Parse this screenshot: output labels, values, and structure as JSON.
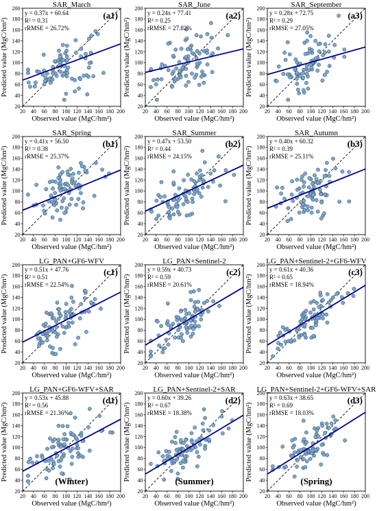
{
  "figure": {
    "x_ticks": [
      20,
      40,
      60,
      80,
      100,
      120,
      140,
      160,
      180,
      200
    ],
    "y_ticks": [
      20,
      40,
      60,
      80,
      100,
      120,
      140,
      160,
      180,
      200
    ],
    "axis_range": [
      20,
      200
    ],
    "xlabel": "Observed value (MgC/hm²)",
    "ylabel": "Predicted value (MgC/hm²)",
    "colors": {
      "point_fill": "#7fa8cb",
      "point_stroke": "#1e3c5e",
      "fit_line": "#00008b",
      "identity_line": "#000000"
    }
  },
  "chart_data": [
    {
      "type": "scatter",
      "panel": "a1",
      "title": "SAR_March",
      "equation": "y = 0.37x + 60.64",
      "r2": "R² = 0.31",
      "rrmse": "rRMSE = 26.72%",
      "slope": 0.37,
      "intercept": 60.64,
      "xlim": [
        20,
        200
      ],
      "ylim": [
        20,
        200
      ],
      "tag": ""
    },
    {
      "type": "scatter",
      "panel": "a2",
      "title": "SAR_June",
      "equation": "y = 0.24x + 77.41",
      "r2": "R² = 0.25",
      "rrmse": "rRMSE = 27.82%",
      "slope": 0.24,
      "intercept": 77.41,
      "xlim": [
        20,
        200
      ],
      "ylim": [
        20,
        200
      ],
      "tag": ""
    },
    {
      "type": "scatter",
      "panel": "a3",
      "title": "SAR_September",
      "equation": "y = 0.28x + 72.75",
      "r2": "R² = 0.29",
      "rrmse": "rRMSE = 27.05%",
      "slope": 0.28,
      "intercept": 72.75,
      "xlim": [
        20,
        200
      ],
      "ylim": [
        20,
        200
      ],
      "tag": ""
    },
    {
      "type": "scatter",
      "panel": "b1",
      "title": "SAR_Spring",
      "equation": "y = 0.41x + 56.50",
      "r2": "R² = 0.38",
      "rrmse": "rRMSE = 25.37%",
      "slope": 0.41,
      "intercept": 56.5,
      "xlim": [
        20,
        200
      ],
      "ylim": [
        20,
        200
      ],
      "tag": ""
    },
    {
      "type": "scatter",
      "panel": "b2",
      "title": "SAR_Summer",
      "equation": "y = 0.47x + 53.50",
      "r2": "R² = 0.44",
      "rrmse": "rRMSE = 24.15%",
      "slope": 0.47,
      "intercept": 53.5,
      "xlim": [
        20,
        200
      ],
      "ylim": [
        20,
        200
      ],
      "tag": ""
    },
    {
      "type": "scatter",
      "panel": "b3",
      "title": "SAR_Autumn",
      "equation": "y = 0.40x + 60.32",
      "r2": "R² = 0.39",
      "rrmse": "rRMSE = 25.11%",
      "slope": 0.4,
      "intercept": 60.32,
      "xlim": [
        20,
        200
      ],
      "ylim": [
        20,
        200
      ],
      "tag": ""
    },
    {
      "type": "scatter",
      "panel": "c1",
      "title": "LG_PAN+GF6-WFV",
      "equation": "y = 0.51x + 47.76",
      "r2": "R² = 0.51",
      "rrmse": "rRMSE = 22.54%",
      "slope": 0.51,
      "intercept": 47.76,
      "xlim": [
        20,
        200
      ],
      "ylim": [
        20,
        200
      ],
      "tag": ""
    },
    {
      "type": "scatter",
      "panel": "c2",
      "title": "LG_PAN+Sentinel-2",
      "equation": "y = 0.59x + 40.73",
      "r2": "R² = 0.59",
      "rrmse": "rRMSE = 20.61%",
      "slope": 0.59,
      "intercept": 40.73,
      "xlim": [
        20,
        200
      ],
      "ylim": [
        20,
        200
      ],
      "tag": ""
    },
    {
      "type": "scatter",
      "panel": "c3",
      "title": "LG_PAN+Sentinel-2+GF6-WFV",
      "equation": "y = 0.61x + 40.36",
      "r2": "R² = 0.65",
      "rrmse": "rRMSE = 18.94%",
      "slope": 0.61,
      "intercept": 40.36,
      "xlim": [
        20,
        200
      ],
      "ylim": [
        20,
        200
      ],
      "tag": ""
    },
    {
      "type": "scatter",
      "panel": "d1",
      "title": "LG_PAN+GF6-WFV+SAR",
      "equation": "y = 0.53x + 45.88",
      "r2": "R² = 0.56",
      "rrmse": "rRMSE = 21.36%",
      "slope": 0.53,
      "intercept": 45.88,
      "xlim": [
        20,
        200
      ],
      "ylim": [
        20,
        200
      ],
      "tag": "(Winter)"
    },
    {
      "type": "scatter",
      "panel": "d2",
      "title": "LG_PAN+Sentinel-2+SAR",
      "equation": "y = 0.60x + 39.26",
      "r2": "R² = 0.67",
      "rrmse": "rRMSE = 18.38%",
      "slope": 0.6,
      "intercept": 39.26,
      "xlim": [
        20,
        200
      ],
      "ylim": [
        20,
        200
      ],
      "tag": "(Summer)"
    },
    {
      "type": "scatter",
      "panel": "d3",
      "title": "LG_PAN+Sentinel-2+GF6-WFV+SAR",
      "equation": "y = 0.63x + 38.65",
      "r2": "R² = 0.69",
      "rrmse": "rRMSE = 18.03%",
      "slope": 0.63,
      "intercept": 38.65,
      "xlim": [
        20,
        200
      ],
      "ylim": [
        20,
        200
      ],
      "tag": "(Spring)"
    }
  ]
}
